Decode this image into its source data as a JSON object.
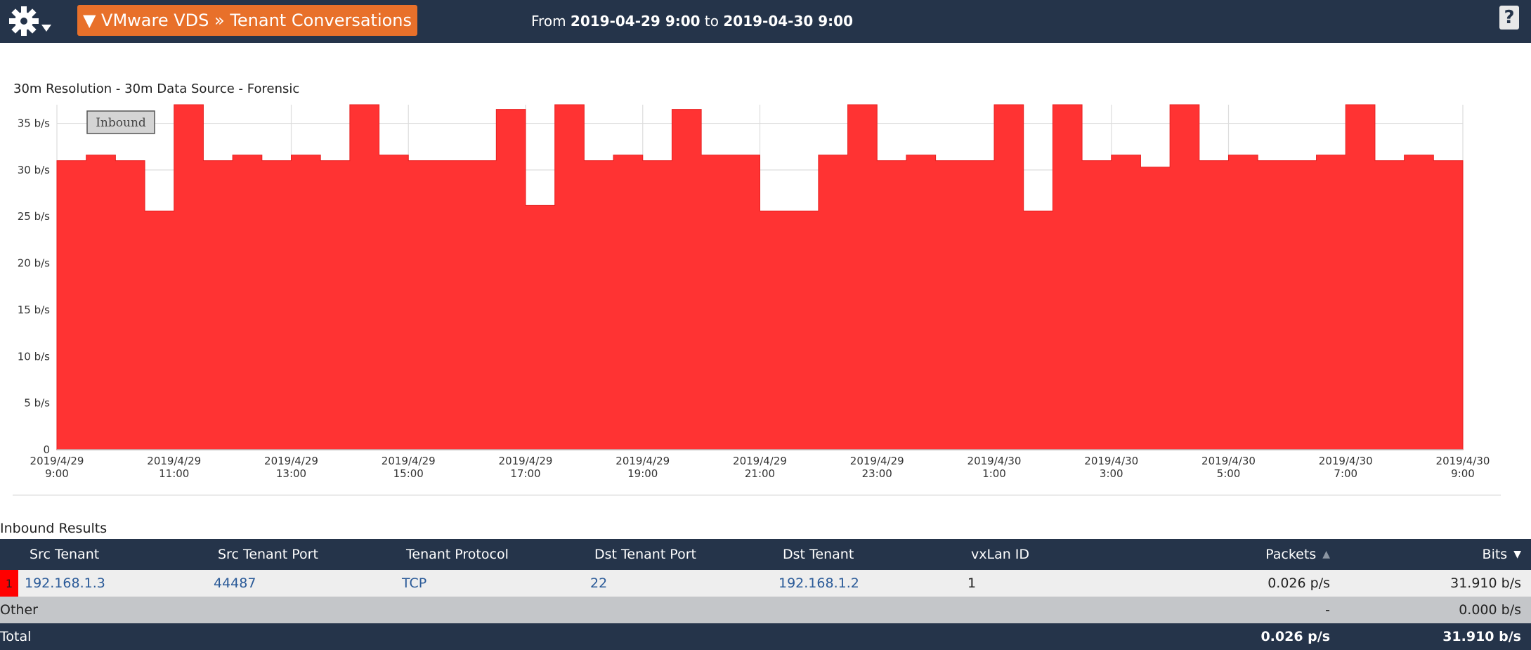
{
  "header": {
    "title": "▼ VMware VDS » Tenant Conversations",
    "from_label": "From",
    "from_date": "2019-04-29 9:00",
    "to_label": "to",
    "to_date": "2019-04-30 9:00",
    "help_label": "?",
    "menu_icon": "gear-icon"
  },
  "chart_data": {
    "type": "area",
    "title": "30m Resolution - 30m Data Source - Forensic",
    "legend": [
      "Inbound"
    ],
    "legend_placement": "top-left",
    "grid": true,
    "ylim": [
      0,
      37
    ],
    "yticks": [
      "0",
      "5 b/s",
      "10 b/s",
      "15 b/s",
      "20 b/s",
      "25 b/s",
      "30 b/s",
      "35 b/s"
    ],
    "xticks": [
      [
        "2019/4/29",
        "9:00"
      ],
      [
        "2019/4/29",
        "11:00"
      ],
      [
        "2019/4/29",
        "13:00"
      ],
      [
        "2019/4/29",
        "15:00"
      ],
      [
        "2019/4/29",
        "17:00"
      ],
      [
        "2019/4/29",
        "19:00"
      ],
      [
        "2019/4/29",
        "21:00"
      ],
      [
        "2019/4/29",
        "23:00"
      ],
      [
        "2019/4/30",
        "1:00"
      ],
      [
        "2019/4/30",
        "3:00"
      ],
      [
        "2019/4/30",
        "5:00"
      ],
      [
        "2019/4/30",
        "7:00"
      ],
      [
        "2019/4/30",
        "9:00"
      ]
    ],
    "color": "#ff3333",
    "series": [
      {
        "name": "Inbound",
        "values": [
          31,
          31.6,
          31,
          25.6,
          37,
          31,
          31.6,
          31,
          31.6,
          31,
          37,
          31.6,
          31,
          31,
          31,
          36.5,
          26.2,
          37,
          31,
          31.6,
          31,
          36.5,
          31.6,
          31.6,
          25.6,
          25.6,
          31.6,
          37,
          31,
          31.6,
          31,
          31,
          37,
          25.6,
          37,
          31,
          31.6,
          30.3,
          37,
          31,
          31.6,
          31,
          31,
          31.6,
          37,
          31,
          31.6,
          31
        ]
      }
    ]
  },
  "results": {
    "heading": "Inbound Results",
    "columns": [
      "Src Tenant",
      "Src Tenant Port",
      "Tenant Protocol",
      "Dst Tenant Port",
      "Dst Tenant",
      "vxLan ID",
      "Packets",
      "Bits"
    ],
    "rows": [
      {
        "rank": "1",
        "src_tenant": "192.168.1.3",
        "src_port": "44487",
        "protocol": "TCP",
        "dst_port": "22",
        "dst_tenant": "192.168.1.2",
        "vxlan_id": "1",
        "packets": "0.026 p/s",
        "bits": "31.910 b/s"
      }
    ],
    "other": {
      "label": "Other",
      "packets": "-",
      "bits": "0.000 b/s"
    },
    "total": {
      "label": "Total",
      "packets": "0.026 p/s",
      "bits": "31.910 b/s"
    }
  }
}
